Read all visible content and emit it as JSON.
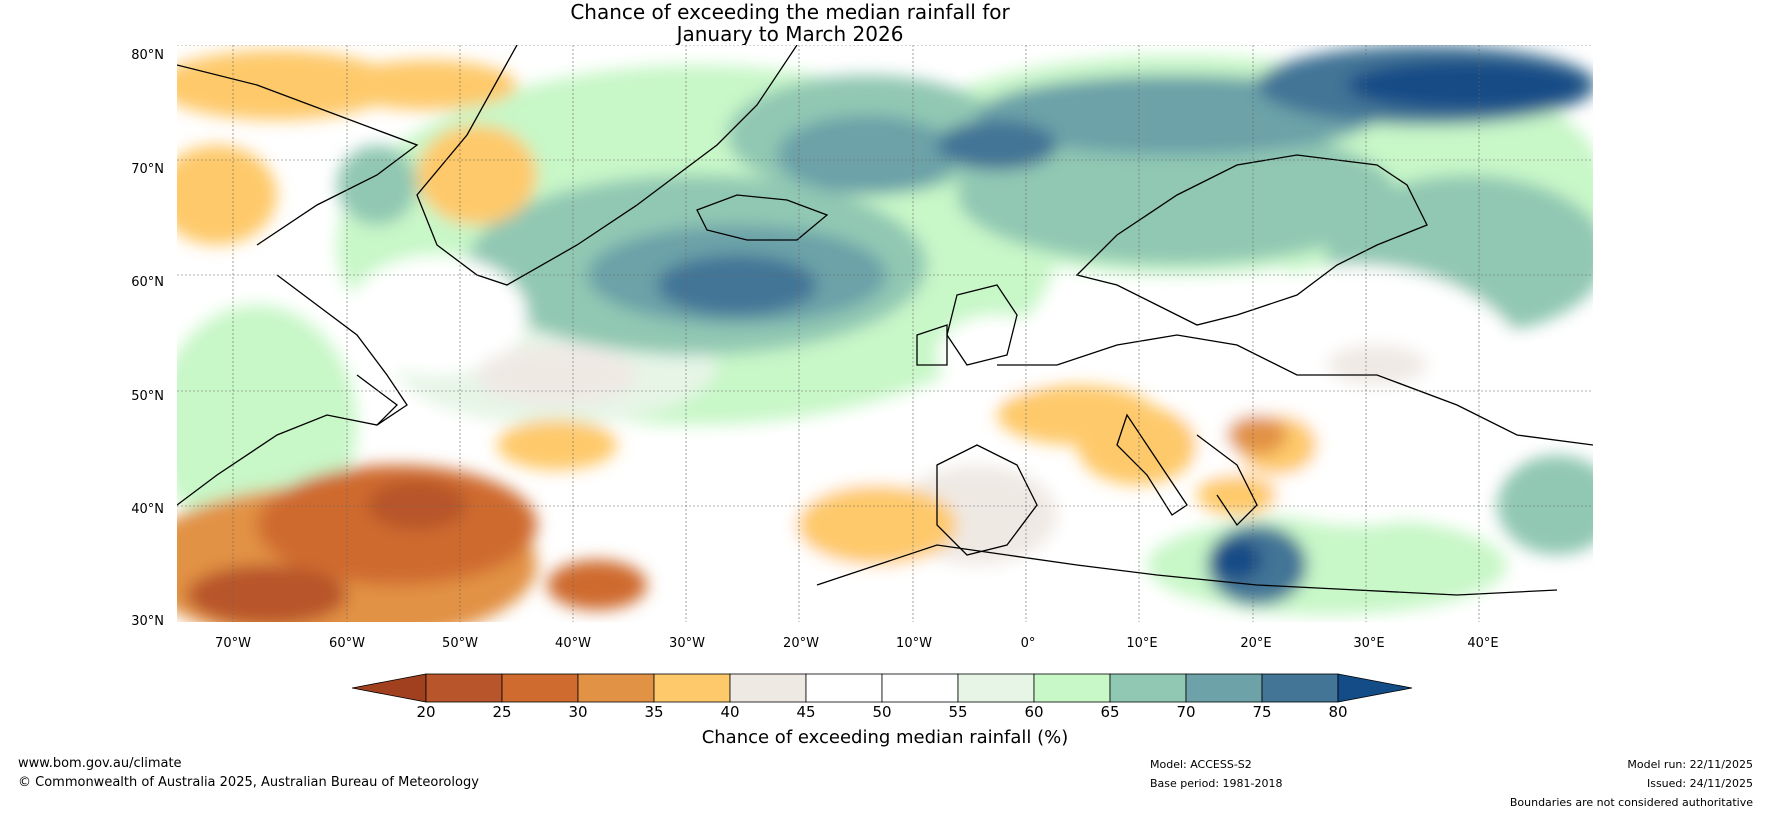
{
  "title": {
    "line1": "Chance of exceeding the median rainfall for",
    "line2": "January to March 2026"
  },
  "map": {
    "lat_labels": [
      "80°N",
      "70°N",
      "60°N",
      "50°N",
      "40°N",
      "30°N"
    ],
    "lon_labels": [
      "70°W",
      "60°W",
      "50°W",
      "40°W",
      "30°W",
      "20°W",
      "10°W",
      "0°",
      "10°E",
      "20°E",
      "30°E",
      "40°E"
    ],
    "lat_range": [
      30,
      80
    ],
    "lon_range": [
      -75,
      50
    ]
  },
  "legend": {
    "ticks": [
      "20",
      "25",
      "30",
      "35",
      "40",
      "45",
      "50",
      "55",
      "60",
      "65",
      "70",
      "75",
      "80"
    ],
    "colors": [
      "#a0401e",
      "#b8552a",
      "#cf6b2e",
      "#e29245",
      "#fec96a",
      "#efe9e4",
      "#ffffff",
      "#ffffff",
      "#e6f5e6",
      "#c8f7c8",
      "#91c8b3",
      "#6ca2a8",
      "#427596",
      "#134c86"
    ],
    "label": "Chance of exceeding median rainfall (%)"
  },
  "footer": {
    "url": "www.bom.gov.au/climate",
    "copyright": "© Commonwealth of Australia 2025, Australian Bureau of Meteorology",
    "model": "Model: ACCESS-S2",
    "base_period": "Base period: 1981-2018",
    "model_run": "Model run: 22/11/2025",
    "issued": "Issued: 24/11/2025",
    "boundaries": "Boundaries are not considered authoritative"
  }
}
